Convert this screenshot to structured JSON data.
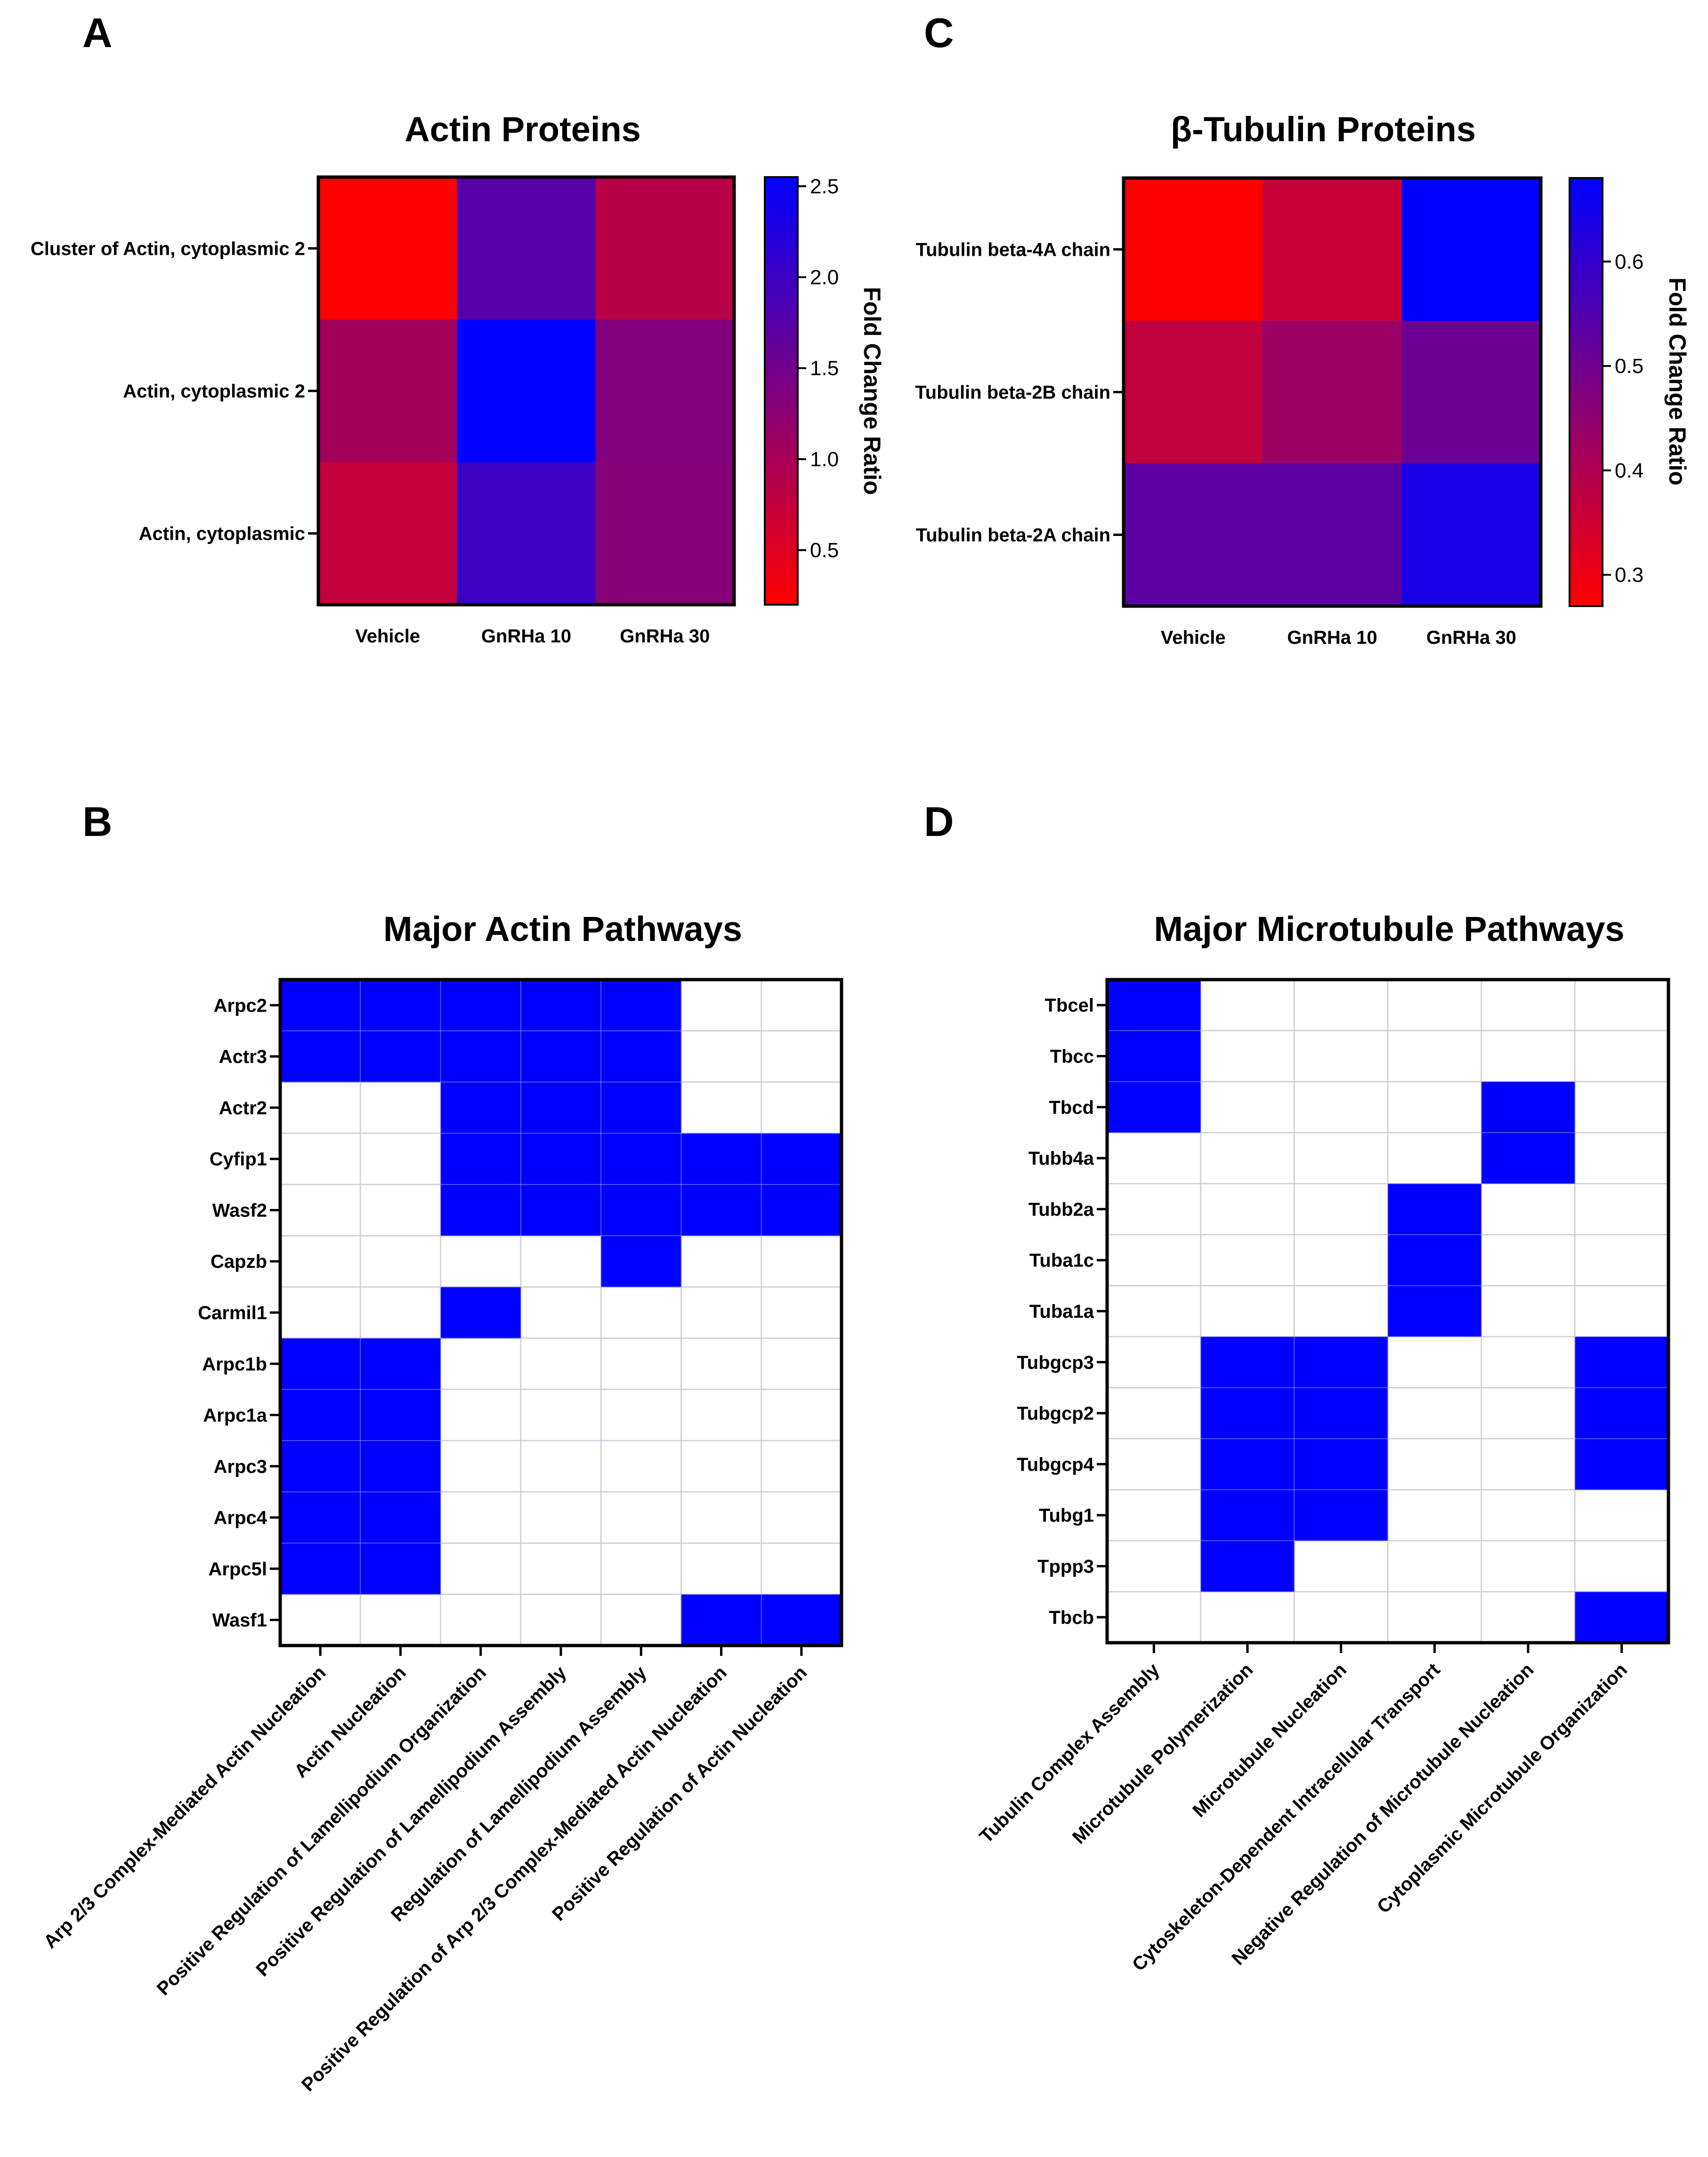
{
  "chart_data": [
    {
      "panel": "A",
      "type": "heatmap",
      "title": "Actin Proteins",
      "x_categories": [
        "Vehicle",
        "GnRHa 10",
        "GnRHa 30"
      ],
      "y_categories": [
        "Cluster of Actin, cytoplasmic 2",
        "Actin, cytoplasmic 2",
        "Actin, cytoplasmic"
      ],
      "values": [
        [
          0.2,
          1.75,
          0.85
        ],
        [
          1.05,
          2.55,
          1.35
        ],
        [
          0.75,
          2.0,
          1.3
        ]
      ],
      "colorbar": {
        "label": "Fold Change Ratio",
        "range": [
          0.2,
          2.55
        ],
        "ticks": [
          0.5,
          1.0,
          1.5,
          2.0,
          2.5
        ],
        "tick_labels": [
          "0.5",
          "1.0",
          "1.5",
          "2.0",
          "2.5"
        ],
        "low_color": "#ff0000",
        "high_color": "#0000ff"
      }
    },
    {
      "panel": "C",
      "type": "heatmap",
      "title": "β-Tubulin Proteins",
      "x_categories": [
        "Vehicle",
        "GnRHa 10",
        "GnRHa 30"
      ],
      "y_categories": [
        "Tubulin beta-4A chain",
        "Tubulin beta-2B chain",
        "Tubulin beta-2A chain"
      ],
      "values": [
        [
          0.27,
          0.36,
          0.68
        ],
        [
          0.37,
          0.43,
          0.51
        ],
        [
          0.53,
          0.53,
          0.64
        ]
      ],
      "colorbar": {
        "label": "Fold Change Ratio",
        "range": [
          0.27,
          0.68
        ],
        "ticks": [
          0.3,
          0.4,
          0.5,
          0.6
        ],
        "tick_labels": [
          "0.3",
          "0.4",
          "0.5",
          "0.6"
        ],
        "low_color": "#ff0000",
        "high_color": "#0000ff"
      }
    },
    {
      "panel": "B",
      "type": "heatmap",
      "title": "Major Actin Pathways",
      "y_categories": [
        "Arpc2",
        "Actr3",
        "Actr2",
        "Cyfip1",
        "Wasf2",
        "Capzb",
        "Carmil1",
        "Arpc1b",
        "Arpc1a",
        "Arpc3",
        "Arpc4",
        "Arpc5l",
        "Wasf1"
      ],
      "x_categories": [
        "Arp 2/3 Complex-Mediated Actin Nucleation",
        "Actin Nucleation",
        "Positive Regulation of Lamellipodium Organization",
        "Positive Regulation of Lamellipodium Assembly",
        "Regulation of Lamellipodium Assembly",
        "Positive Regulation of Arp 2/3 Complex-Mediated Actin Nucleation",
        "Positive Regulation of Actin Nucleation"
      ],
      "values": [
        [
          1,
          1,
          1,
          1,
          1,
          0,
          0
        ],
        [
          1,
          1,
          1,
          1,
          1,
          0,
          0
        ],
        [
          0,
          0,
          1,
          1,
          1,
          0,
          0
        ],
        [
          0,
          0,
          1,
          1,
          1,
          1,
          1
        ],
        [
          0,
          0,
          1,
          1,
          1,
          1,
          1
        ],
        [
          0,
          0,
          0,
          0,
          1,
          0,
          0
        ],
        [
          0,
          0,
          1,
          0,
          0,
          0,
          0
        ],
        [
          1,
          1,
          0,
          0,
          0,
          0,
          0
        ],
        [
          1,
          1,
          0,
          0,
          0,
          0,
          0
        ],
        [
          1,
          1,
          0,
          0,
          0,
          0,
          0
        ],
        [
          1,
          1,
          0,
          0,
          0,
          0,
          0
        ],
        [
          1,
          1,
          0,
          0,
          0,
          0,
          0
        ],
        [
          0,
          0,
          0,
          0,
          0,
          1,
          1
        ]
      ],
      "member_color": "#0000ff"
    },
    {
      "panel": "D",
      "type": "heatmap",
      "title": "Major Microtubule Pathways",
      "y_categories": [
        "Tbcel",
        "Tbcc",
        "Tbcd",
        "Tubb4a",
        "Tubb2a",
        "Tuba1c",
        "Tuba1a",
        "Tubgcp3",
        "Tubgcp2",
        "Tubgcp4",
        "Tubg1",
        "Tppp3",
        "Tbcb"
      ],
      "x_categories": [
        "Tubulin Complex Assembly",
        "Microtubule Polymerization",
        "Microtubule Nucleation",
        "Cytoskeleton-Dependent Intracellular Transport",
        "Negative Regulation of Microtubule Nucleation",
        "Cytoplasmic Microtubule Organization"
      ],
      "values": [
        [
          1,
          0,
          0,
          0,
          0,
          0
        ],
        [
          1,
          0,
          0,
          0,
          0,
          0
        ],
        [
          1,
          0,
          0,
          0,
          1,
          0
        ],
        [
          0,
          0,
          0,
          0,
          1,
          0
        ],
        [
          0,
          0,
          0,
          1,
          0,
          0
        ],
        [
          0,
          0,
          0,
          1,
          0,
          0
        ],
        [
          0,
          0,
          0,
          1,
          0,
          0
        ],
        [
          0,
          1,
          1,
          0,
          0,
          1
        ],
        [
          0,
          1,
          1,
          0,
          0,
          1
        ],
        [
          0,
          1,
          1,
          0,
          0,
          1
        ],
        [
          0,
          1,
          1,
          0,
          0,
          0
        ],
        [
          0,
          1,
          0,
          0,
          0,
          0
        ],
        [
          0,
          0,
          0,
          0,
          0,
          1
        ]
      ],
      "member_color": "#0000ff"
    }
  ]
}
